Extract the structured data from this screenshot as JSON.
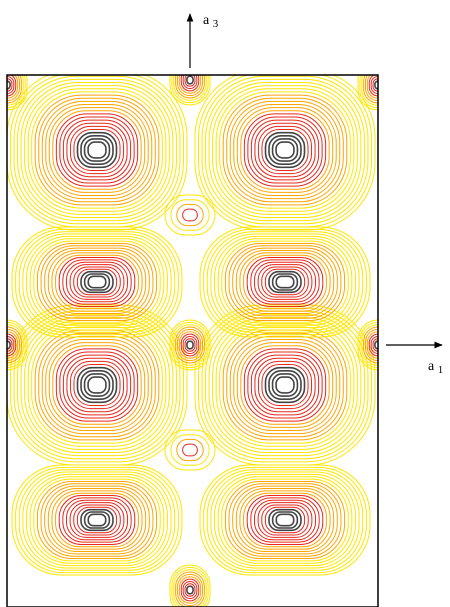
{
  "axes": [
    {
      "symbol": "a",
      "index": "3"
    },
    {
      "symbol": "a",
      "index": "1"
    }
  ]
}
